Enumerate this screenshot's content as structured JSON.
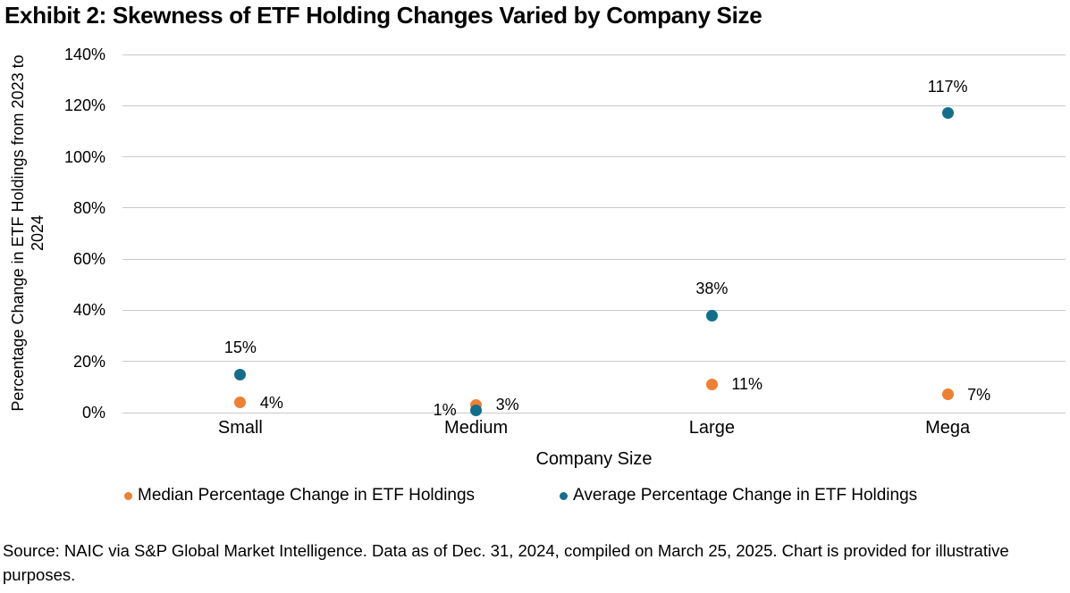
{
  "chart_data": {
    "type": "scatter",
    "title": "Exhibit 2: Skewness of ETF Holding Changes Varied by Company Size",
    "xlabel": "Company Size",
    "ylabel": "Percentage Change in ETF Holdings from 2023 to 2024",
    "categories": [
      "Small",
      "Medium",
      "Large",
      "Mega"
    ],
    "ylim": [
      0,
      140
    ],
    "yticks": [
      {
        "value": 0,
        "label": "0%"
      },
      {
        "value": 20,
        "label": "20%"
      },
      {
        "value": 40,
        "label": "40%"
      },
      {
        "value": 60,
        "label": "60%"
      },
      {
        "value": 80,
        "label": "80%"
      },
      {
        "value": 100,
        "label": "100%"
      },
      {
        "value": 120,
        "label": "120%"
      },
      {
        "value": 140,
        "label": "140%"
      }
    ],
    "grid": "horizontal",
    "legend_position": "bottom",
    "series": [
      {
        "name": "Median Percentage Change in ETF Holdings",
        "color": "#EE8033",
        "values": [
          4,
          3,
          11,
          7
        ],
        "data_labels": [
          "4%",
          "3%",
          "11%",
          "7%"
        ],
        "label_positions": [
          "right",
          "right",
          "right",
          "right"
        ]
      },
      {
        "name": "Average Percentage Change in ETF Holdings",
        "color": "#136E8C",
        "values": [
          15,
          1,
          38,
          117
        ],
        "data_labels": [
          "15%",
          "1%",
          "38%",
          "117%"
        ],
        "label_positions": [
          "above",
          "left",
          "above",
          "above"
        ]
      }
    ]
  },
  "source_note": "Source: NAIC via S&P Global Market Intelligence. Data as of Dec. 31, 2024, compiled on March 25, 2025. Chart is provided for illustrative purposes.",
  "colors": {
    "median_series": "#EE8033",
    "average_series": "#136E8C",
    "gridline": "#C9C9C9",
    "text": "#000000",
    "background": "#FFFFFF"
  }
}
